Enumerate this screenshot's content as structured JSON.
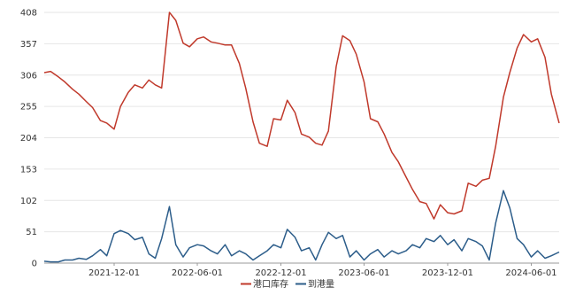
{
  "chart_data": {
    "type": "line",
    "y_ticks": [
      "0",
      "51",
      "102",
      "153",
      "204",
      "255",
      "306",
      "357",
      "408"
    ],
    "x_ticks": [
      "2021-12-01",
      "2022-06-01",
      "2022-12-01",
      "2023-06-01",
      "2023-12-01",
      "2024-06-01"
    ],
    "ylim": [
      0,
      408
    ],
    "grid": "horizontal",
    "legend_position": "bottom-center",
    "series": [
      {
        "name": "港口库存",
        "color": "#c0392b",
        "points": [
          [
            "2021-07-01",
            310
          ],
          [
            "2021-07-15",
            312
          ],
          [
            "2021-08-01",
            303
          ],
          [
            "2021-08-15",
            295
          ],
          [
            "2021-09-01",
            283
          ],
          [
            "2021-09-15",
            275
          ],
          [
            "2021-10-01",
            263
          ],
          [
            "2021-10-15",
            253
          ],
          [
            "2021-11-01",
            232
          ],
          [
            "2021-11-15",
            228
          ],
          [
            "2021-12-01",
            218
          ],
          [
            "2021-12-15",
            255
          ],
          [
            "2022-01-01",
            278
          ],
          [
            "2022-01-15",
            290
          ],
          [
            "2022-02-01",
            285
          ],
          [
            "2022-02-15",
            298
          ],
          [
            "2022-03-01",
            290
          ],
          [
            "2022-03-15",
            285
          ],
          [
            "2022-04-01",
            408
          ],
          [
            "2022-04-15",
            395
          ],
          [
            "2022-05-01",
            358
          ],
          [
            "2022-05-15",
            352
          ],
          [
            "2022-06-01",
            365
          ],
          [
            "2022-06-15",
            368
          ],
          [
            "2022-07-01",
            360
          ],
          [
            "2022-07-15",
            358
          ],
          [
            "2022-08-01",
            355
          ],
          [
            "2022-08-15",
            355
          ],
          [
            "2022-09-01",
            325
          ],
          [
            "2022-09-15",
            285
          ],
          [
            "2022-10-01",
            230
          ],
          [
            "2022-10-15",
            195
          ],
          [
            "2022-11-01",
            190
          ],
          [
            "2022-11-15",
            235
          ],
          [
            "2022-12-01",
            233
          ],
          [
            "2022-12-15",
            265
          ],
          [
            "2023-01-01",
            245
          ],
          [
            "2023-01-15",
            210
          ],
          [
            "2023-02-01",
            205
          ],
          [
            "2023-02-15",
            195
          ],
          [
            "2023-03-01",
            192
          ],
          [
            "2023-03-15",
            215
          ],
          [
            "2023-04-01",
            320
          ],
          [
            "2023-04-15",
            370
          ],
          [
            "2023-05-01",
            362
          ],
          [
            "2023-05-15",
            340
          ],
          [
            "2023-06-01",
            295
          ],
          [
            "2023-06-15",
            235
          ],
          [
            "2023-07-01",
            230
          ],
          [
            "2023-07-15",
            210
          ],
          [
            "2023-08-01",
            180
          ],
          [
            "2023-08-15",
            165
          ],
          [
            "2023-09-01",
            140
          ],
          [
            "2023-09-15",
            120
          ],
          [
            "2023-10-01",
            100
          ],
          [
            "2023-10-15",
            97
          ],
          [
            "2023-11-01",
            72
          ],
          [
            "2023-11-15",
            95
          ],
          [
            "2023-12-01",
            82
          ],
          [
            "2023-12-15",
            80
          ],
          [
            "2024-01-01",
            85
          ],
          [
            "2024-01-15",
            130
          ],
          [
            "2024-02-01",
            125
          ],
          [
            "2024-02-15",
            135
          ],
          [
            "2024-03-01",
            138
          ],
          [
            "2024-03-15",
            190
          ],
          [
            "2024-04-01",
            270
          ],
          [
            "2024-04-15",
            310
          ],
          [
            "2024-05-01",
            350
          ],
          [
            "2024-05-15",
            372
          ],
          [
            "2024-06-01",
            360
          ],
          [
            "2024-06-15",
            365
          ],
          [
            "2024-07-01",
            335
          ],
          [
            "2024-07-15",
            275
          ],
          [
            "2024-08-01",
            228
          ]
        ]
      },
      {
        "name": "到港量",
        "color": "#2c5d8a",
        "points": [
          [
            "2021-07-01",
            3
          ],
          [
            "2021-07-15",
            2
          ],
          [
            "2021-08-01",
            2
          ],
          [
            "2021-08-15",
            5
          ],
          [
            "2021-09-01",
            5
          ],
          [
            "2021-09-15",
            8
          ],
          [
            "2021-10-01",
            6
          ],
          [
            "2021-10-15",
            12
          ],
          [
            "2021-11-01",
            22
          ],
          [
            "2021-11-15",
            12
          ],
          [
            "2021-12-01",
            48
          ],
          [
            "2021-12-15",
            53
          ],
          [
            "2022-01-01",
            48
          ],
          [
            "2022-01-15",
            38
          ],
          [
            "2022-02-01",
            42
          ],
          [
            "2022-02-15",
            15
          ],
          [
            "2022-03-01",
            8
          ],
          [
            "2022-03-15",
            40
          ],
          [
            "2022-04-01",
            92
          ],
          [
            "2022-04-15",
            30
          ],
          [
            "2022-05-01",
            10
          ],
          [
            "2022-05-15",
            25
          ],
          [
            "2022-06-01",
            30
          ],
          [
            "2022-06-15",
            28
          ],
          [
            "2022-07-01",
            20
          ],
          [
            "2022-07-15",
            15
          ],
          [
            "2022-08-01",
            30
          ],
          [
            "2022-08-15",
            12
          ],
          [
            "2022-09-01",
            20
          ],
          [
            "2022-09-15",
            15
          ],
          [
            "2022-10-01",
            5
          ],
          [
            "2022-10-15",
            12
          ],
          [
            "2022-11-01",
            20
          ],
          [
            "2022-11-15",
            30
          ],
          [
            "2022-12-01",
            25
          ],
          [
            "2022-12-15",
            55
          ],
          [
            "2023-01-01",
            42
          ],
          [
            "2023-01-15",
            20
          ],
          [
            "2023-02-01",
            25
          ],
          [
            "2023-02-15",
            5
          ],
          [
            "2023-03-01",
            30
          ],
          [
            "2023-03-15",
            50
          ],
          [
            "2023-04-01",
            40
          ],
          [
            "2023-04-15",
            45
          ],
          [
            "2023-05-01",
            10
          ],
          [
            "2023-05-15",
            20
          ],
          [
            "2023-06-01",
            5
          ],
          [
            "2023-06-15",
            15
          ],
          [
            "2023-07-01",
            22
          ],
          [
            "2023-07-15",
            10
          ],
          [
            "2023-08-01",
            20
          ],
          [
            "2023-08-15",
            15
          ],
          [
            "2023-09-01",
            20
          ],
          [
            "2023-09-15",
            30
          ],
          [
            "2023-10-01",
            25
          ],
          [
            "2023-10-15",
            40
          ],
          [
            "2023-11-01",
            35
          ],
          [
            "2023-11-15",
            45
          ],
          [
            "2023-12-01",
            30
          ],
          [
            "2023-12-15",
            38
          ],
          [
            "2024-01-01",
            20
          ],
          [
            "2024-01-15",
            40
          ],
          [
            "2024-02-01",
            35
          ],
          [
            "2024-02-15",
            28
          ],
          [
            "2024-03-01",
            5
          ],
          [
            "2024-03-15",
            65
          ],
          [
            "2024-04-01",
            118
          ],
          [
            "2024-04-15",
            90
          ],
          [
            "2024-05-01",
            40
          ],
          [
            "2024-05-15",
            30
          ],
          [
            "2024-06-01",
            10
          ],
          [
            "2024-06-15",
            20
          ],
          [
            "2024-07-01",
            8
          ],
          [
            "2024-07-15",
            12
          ],
          [
            "2024-08-01",
            18
          ]
        ]
      }
    ]
  }
}
